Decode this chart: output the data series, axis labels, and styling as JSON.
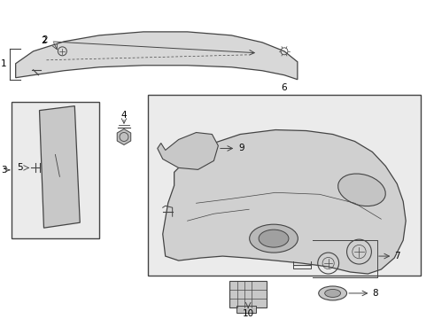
{
  "white": "#ffffff",
  "line_color": "#444444",
  "text_color": "#000000",
  "box_bg": "#ebebeb",
  "figsize": [
    4.9,
    3.6
  ],
  "dpi": 100
}
